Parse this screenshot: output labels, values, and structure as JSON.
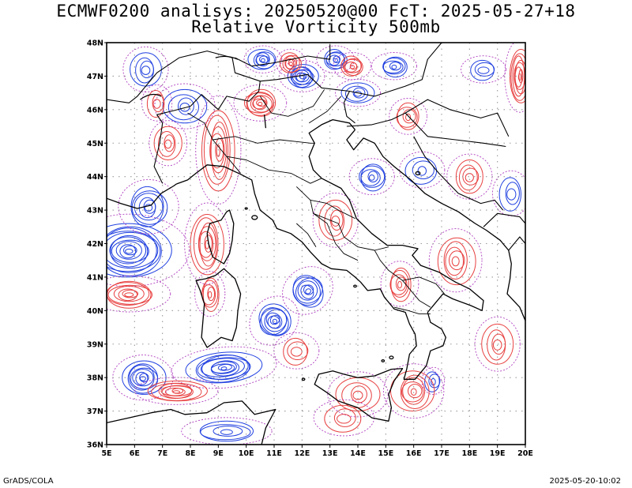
{
  "title": {
    "line1": "ECMWF0200 analisys: 20250520@00 FcT: 2025-05-27+18",
    "line2": "Relative Vorticity 500mb"
  },
  "map": {
    "lon_range": [
      5,
      20
    ],
    "lat_range": [
      36,
      48
    ],
    "lon_labels": [
      "5E",
      "6E",
      "7E",
      "8E",
      "9E",
      "10E",
      "11E",
      "12E",
      "13E",
      "14E",
      "15E",
      "16E",
      "17E",
      "18E",
      "19E",
      "20E"
    ],
    "lat_labels": [
      "36N",
      "37N",
      "38N",
      "39N",
      "40N",
      "41N",
      "42N",
      "43N",
      "44N",
      "45N",
      "46N",
      "47N",
      "48N"
    ],
    "grid": "dotted",
    "colors": {
      "positive": "#e84040",
      "negative": "#2040e0",
      "zero": "#b040c0",
      "coast": "#000000"
    }
  },
  "footer": {
    "left": "GrADS/COLA",
    "right": "2025-05-20-10:02"
  }
}
